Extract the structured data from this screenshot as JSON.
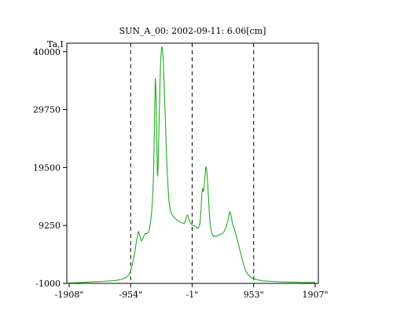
{
  "chart_data": {
    "type": "line",
    "title": "SUN_A_00: 2002-09-11: 6.06[cm]",
    "ylabel": "Ta,I",
    "xlabel": "",
    "x_tick_labels": [
      "-1908\"",
      "-954\"",
      "-1\"",
      "953\"",
      "1907\""
    ],
    "x_ticks": [
      -1908,
      -954,
      -1,
      953,
      1907
    ],
    "y_tick_labels": [
      "40000",
      "29750",
      "19500",
      "9250",
      "-1000"
    ],
    "y_ticks": [
      40000,
      29750,
      19500,
      9250,
      -1000
    ],
    "xlim": [
      -1908,
      1907
    ],
    "ylim": [
      -1000,
      41500
    ],
    "dashed_vlines": [
      -954,
      -1,
      953
    ],
    "grid": false,
    "colors": {
      "series": "#22aa22",
      "frame": "#000000",
      "dashed": "#000000"
    },
    "series": [
      {
        "points": [
          [
            -1908,
            -900
          ],
          [
            -1750,
            -850
          ],
          [
            -1600,
            -750
          ],
          [
            -1400,
            -650
          ],
          [
            -1200,
            -500
          ],
          [
            -1100,
            -300
          ],
          [
            -1030,
            0
          ],
          [
            -990,
            400
          ],
          [
            -960,
            1000
          ],
          [
            -935,
            2000
          ],
          [
            -910,
            3300
          ],
          [
            -885,
            4800
          ],
          [
            -865,
            6500
          ],
          [
            -850,
            7300
          ],
          [
            -840,
            8000
          ],
          [
            -830,
            8200
          ],
          [
            -815,
            7400
          ],
          [
            -800,
            6800
          ],
          [
            -785,
            6500
          ],
          [
            -770,
            6800
          ],
          [
            -750,
            7400
          ],
          [
            -730,
            7800
          ],
          [
            -700,
            7800
          ],
          [
            -670,
            8200
          ],
          [
            -650,
            9500
          ],
          [
            -630,
            11500
          ],
          [
            -615,
            14000
          ],
          [
            -600,
            18000
          ],
          [
            -590,
            24000
          ],
          [
            -580,
            31000
          ],
          [
            -572,
            35200
          ],
          [
            -565,
            34000
          ],
          [
            -556,
            30000
          ],
          [
            -548,
            23000
          ],
          [
            -542,
            18500
          ],
          [
            -536,
            18000
          ],
          [
            -528,
            20000
          ],
          [
            -518,
            25000
          ],
          [
            -505,
            32000
          ],
          [
            -492,
            37500
          ],
          [
            -480,
            40200
          ],
          [
            -470,
            40900
          ],
          [
            -460,
            40500
          ],
          [
            -447,
            38000
          ],
          [
            -435,
            34000
          ],
          [
            -420,
            29000
          ],
          [
            -405,
            24000
          ],
          [
            -390,
            19500
          ],
          [
            -375,
            16000
          ],
          [
            -360,
            13500
          ],
          [
            -340,
            12000
          ],
          [
            -320,
            11300
          ],
          [
            -300,
            11000
          ],
          [
            -270,
            10500
          ],
          [
            -240,
            10300
          ],
          [
            -210,
            10000
          ],
          [
            -180,
            9800
          ],
          [
            -150,
            9700
          ],
          [
            -120,
            9600
          ],
          [
            -100,
            10200
          ],
          [
            -85,
            11000
          ],
          [
            -70,
            11100
          ],
          [
            -55,
            10500
          ],
          [
            -40,
            10000
          ],
          [
            -20,
            9600
          ],
          [
            0,
            9300
          ],
          [
            30,
            9200
          ],
          [
            60,
            9000
          ],
          [
            90,
            8700
          ],
          [
            120,
            9500
          ],
          [
            140,
            12500
          ],
          [
            150,
            15000
          ],
          [
            162,
            15800
          ],
          [
            175,
            15200
          ],
          [
            188,
            16500
          ],
          [
            200,
            18000
          ],
          [
            212,
            19700
          ],
          [
            222,
            19300
          ],
          [
            236,
            17500
          ],
          [
            250,
            14500
          ],
          [
            265,
            11500
          ],
          [
            280,
            9500
          ],
          [
            300,
            8000
          ],
          [
            330,
            7300
          ],
          [
            370,
            7300
          ],
          [
            410,
            7500
          ],
          [
            450,
            7700
          ],
          [
            490,
            8100
          ],
          [
            530,
            9000
          ],
          [
            560,
            10500
          ],
          [
            580,
            11700
          ],
          [
            595,
            11400
          ],
          [
            610,
            10500
          ],
          [
            630,
            9300
          ],
          [
            650,
            8800
          ],
          [
            680,
            7500
          ],
          [
            710,
            6200
          ],
          [
            740,
            4800
          ],
          [
            770,
            3500
          ],
          [
            800,
            2200
          ],
          [
            830,
            1200
          ],
          [
            870,
            500
          ],
          [
            920,
            0
          ],
          [
            1000,
            -350
          ],
          [
            1100,
            -550
          ],
          [
            1250,
            -650
          ],
          [
            1450,
            -750
          ],
          [
            1650,
            -800
          ],
          [
            1800,
            -830
          ],
          [
            1907,
            -850
          ]
        ]
      }
    ]
  }
}
